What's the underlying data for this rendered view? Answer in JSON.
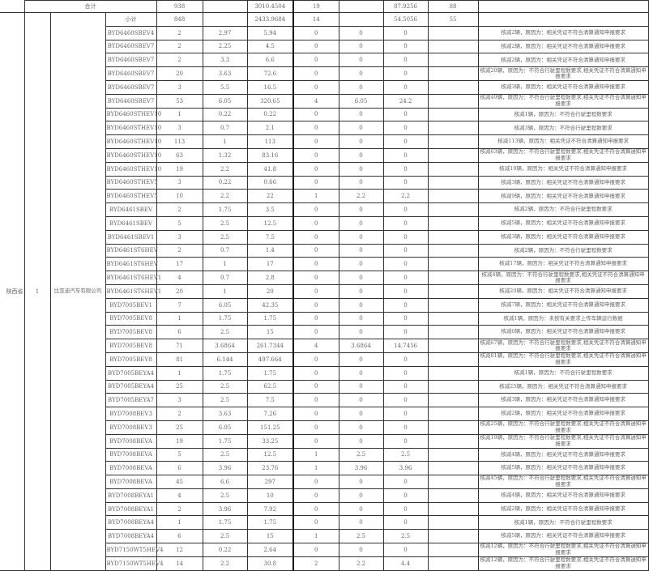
{
  "total": {
    "label": "合计",
    "count": "938",
    "price": "",
    "amount": "3010.4504",
    "cut_count": "19",
    "cut_price": "",
    "cut_amount": "87.9256",
    "extra": "88",
    "remark": ""
  },
  "province": "陕西省",
  "index": "1",
  "company": "比亚迪汽车有限公司",
  "subtotal": {
    "label": "小计",
    "count": "848",
    "price": "",
    "amount": "2433.9684",
    "cut_count": "14",
    "cut_price": "",
    "cut_amount": "54.5056",
    "extra": "55",
    "remark": ""
  },
  "rows": [
    {
      "model": "BYD6460SBEV4",
      "count": "2",
      "price": "2.97",
      "amount": "5.94",
      "cut_count": "0",
      "cut_price": "0",
      "cut_amount": "0",
      "remark": "核减2辆，原因为：相关凭证不符合清算通知申报要求"
    },
    {
      "model": "BYD6460SBEV7",
      "count": "2",
      "price": "2.25",
      "amount": "4.5",
      "cut_count": "0",
      "cut_price": "0",
      "cut_amount": "0",
      "remark": "核减2辆，原因为：相关凭证不符合清算通知申报要求"
    },
    {
      "model": "BYD6460SBEV7",
      "count": "2",
      "price": "3.3",
      "amount": "6.6",
      "cut_count": "0",
      "cut_price": "0",
      "cut_amount": "0",
      "remark": "核减2辆，原因为：相关凭证不符合清算通知申报要求"
    },
    {
      "model": "BYD6460SBEV7",
      "count": "20",
      "price": "3.63",
      "amount": "72.6",
      "cut_count": "0",
      "cut_price": "0",
      "cut_amount": "0",
      "remark": "核减20辆，原因为：不符合行驶里程数要求,相关凭证不符合清算通知申报要求"
    },
    {
      "model": "BYD6460SBEV7",
      "count": "3",
      "price": "5.5",
      "amount": "16.5",
      "cut_count": "0",
      "cut_price": "0",
      "cut_amount": "0",
      "remark": "核减3辆，原因为：相关凭证不符合清算通知申报要求"
    },
    {
      "model": "BYD6460SBEV7",
      "count": "53",
      "price": "6.05",
      "amount": "320.65",
      "cut_count": "4",
      "cut_price": "6.05",
      "cut_amount": "24.2",
      "remark": "核减49辆，原因为：不符合行驶里程数要求,相关凭证不符合清算通知申报要求"
    },
    {
      "model": "BYD6460STHEV10",
      "count": "1",
      "price": "0.22",
      "amount": "0.22",
      "cut_count": "0",
      "cut_price": "0",
      "cut_amount": "0",
      "remark": "核减1辆，原因为：不符合行驶里程数要求"
    },
    {
      "model": "BYD6460STHEV10",
      "count": "3",
      "price": "0.7",
      "amount": "2.1",
      "cut_count": "0",
      "cut_price": "0",
      "cut_amount": "0",
      "remark": "核减3辆，原因为：不符合行驶里程数要求"
    },
    {
      "model": "BYD6460STHEV10",
      "count": "113",
      "price": "1",
      "amount": "113",
      "cut_count": "0",
      "cut_price": "0",
      "cut_amount": "0",
      "remark": "核减113辆，原因为：相关凭证不符合清算通知申报要求"
    },
    {
      "model": "BYD6460STHEV10",
      "count": "63",
      "price": "1.32",
      "amount": "83.16",
      "cut_count": "0",
      "cut_price": "0",
      "cut_amount": "0",
      "remark": "核减63辆，原因为：不符合行驶里程数要求,相关凭证不符合清算通知申报要求"
    },
    {
      "model": "BYD6460STHEV10",
      "count": "19",
      "price": "2.2",
      "amount": "41.8",
      "cut_count": "0",
      "cut_price": "0",
      "cut_amount": "0",
      "remark": "核减19辆，原因为：相关凭证不符合清算通知申报要求"
    },
    {
      "model": "BYD6460STHEV5",
      "count": "3",
      "price": "0.22",
      "amount": "0.66",
      "cut_count": "0",
      "cut_price": "0",
      "cut_amount": "0",
      "remark": "核减3辆，原因为：相关凭证不符合清算通知申报要求"
    },
    {
      "model": "BYD6460STHEV5",
      "count": "10",
      "price": "2.2",
      "amount": "22",
      "cut_count": "1",
      "cut_price": "2.2",
      "cut_amount": "2.2",
      "remark": "核减9辆，原因为：相关凭证不符合清算通知申报要求"
    },
    {
      "model": "BYD6461SBEV",
      "count": "2",
      "price": "1.75",
      "amount": "3.5",
      "cut_count": "0",
      "cut_price": "0",
      "cut_amount": "0",
      "remark": "核减2辆，原因为：不符合行驶里程数要求"
    },
    {
      "model": "BYD6461SBEV",
      "count": "5",
      "price": "2.5",
      "amount": "12.5",
      "cut_count": "0",
      "cut_price": "0",
      "cut_amount": "0",
      "remark": "核减5辆，原因为：相关凭证不符合清算通知申报要求"
    },
    {
      "model": "BYD6461SBEV1",
      "count": "3",
      "price": "2.5",
      "amount": "7.5",
      "cut_count": "0",
      "cut_price": "0",
      "cut_amount": "0",
      "remark": "核减3辆，原因为：相关凭证不符合清算通知申报要求"
    },
    {
      "model": "BYD6461ST6HEV",
      "count": "2",
      "price": "0.7",
      "amount": "1.4",
      "cut_count": "0",
      "cut_price": "0",
      "cut_amount": "0",
      "remark": "核减2辆，原因为：不符合行驶里程数要求"
    },
    {
      "model": "BYD6461ST6HEV",
      "count": "17",
      "price": "1",
      "amount": "17",
      "cut_count": "0",
      "cut_price": "0",
      "cut_amount": "0",
      "remark": "核减17辆，原因为：相关凭证不符合清算通知申报要求"
    },
    {
      "model": "BYD6461ST6HEV1",
      "count": "4",
      "price": "0.7",
      "amount": "2.8",
      "cut_count": "0",
      "cut_price": "0",
      "cut_amount": "0",
      "remark": "核减4辆，原因为：不符合行驶里程数要求,相关凭证不符合清算通知申报要求"
    },
    {
      "model": "BYD6461ST6HEV1",
      "count": "20",
      "price": "1",
      "amount": "20",
      "cut_count": "0",
      "cut_price": "0",
      "cut_amount": "0",
      "remark": "核减20辆，原因为：相关凭证不符合清算通知申报要求"
    },
    {
      "model": "BYD7005BEV1",
      "count": "7",
      "price": "6.05",
      "amount": "42.35",
      "cut_count": "0",
      "cut_price": "0",
      "cut_amount": "0",
      "remark": "核减7辆，原因为：相关凭证不符合清算通知申报要求"
    },
    {
      "model": "BYD7005BEV8",
      "count": "1",
      "price": "1.75",
      "amount": "1.75",
      "cut_count": "0",
      "cut_price": "0",
      "cut_amount": "0",
      "remark": "核减1辆，原因为：未按有关要求上传车辆运行数据"
    },
    {
      "model": "BYD7005BEV8",
      "count": "6",
      "price": "2.5",
      "amount": "15",
      "cut_count": "0",
      "cut_price": "0",
      "cut_amount": "0",
      "remark": "核减6辆，原因为：相关凭证不符合清算通知申报要求"
    },
    {
      "model": "BYD7005BEV8",
      "count": "71",
      "price": "3.6864",
      "amount": "261.7344",
      "cut_count": "4",
      "cut_price": "3.6864",
      "cut_amount": "14.7456",
      "remark": "核减67辆，原因为：不符合行驶里程数要求,相关凭证不符合清算通知申报要求"
    },
    {
      "model": "BYD7005BEV8",
      "count": "81",
      "price": "6.144",
      "amount": "497.664",
      "cut_count": "0",
      "cut_price": "0",
      "cut_amount": "0",
      "remark": "核减81辆，原因为：不符合行驶里程数要求,相关凭证不符合清算通知申报要求"
    },
    {
      "model": "BYD7005BEYA4",
      "count": "1",
      "price": "1.75",
      "amount": "1.75",
      "cut_count": "0",
      "cut_price": "0",
      "cut_amount": "0",
      "remark": "核减1辆，原因为：不符合行驶里程数要求"
    },
    {
      "model": "BYD7005BEYA4",
      "count": "25",
      "price": "2.5",
      "amount": "62.5",
      "cut_count": "0",
      "cut_price": "0",
      "cut_amount": "0",
      "remark": "核减25辆，原因为：相关凭证不符合清算通知申报要求"
    },
    {
      "model": "BYD7005BEYA7",
      "count": "3",
      "price": "2.5",
      "amount": "7.5",
      "cut_count": "0",
      "cut_price": "0",
      "cut_amount": "0",
      "remark": "核减3辆，原因为：相关凭证不符合清算通知申报要求"
    },
    {
      "model": "BYD7008BEV3",
      "count": "2",
      "price": "3.63",
      "amount": "7.26",
      "cut_count": "0",
      "cut_price": "0",
      "cut_amount": "0",
      "remark": "核减2辆，原因为：相关凭证不符合清算通知申报要求"
    },
    {
      "model": "BYD7008BEV3",
      "count": "25",
      "price": "6.05",
      "amount": "151.25",
      "cut_count": "0",
      "cut_price": "0",
      "cut_amount": "0",
      "remark": "核减25辆，原因为：不符合行驶里程数要求,相关凭证不符合清算通知申报要求"
    },
    {
      "model": "BYD7008BEVA",
      "count": "19",
      "price": "1.75",
      "amount": "33.25",
      "cut_count": "0",
      "cut_price": "0",
      "cut_amount": "0",
      "remark": "核减19辆，原因为：不符合行驶里程数要求,相关凭证不符合清算通知申报要求"
    },
    {
      "model": "BYD7008BEVA",
      "count": "5",
      "price": "2.5",
      "amount": "12.5",
      "cut_count": "1",
      "cut_price": "2.5",
      "cut_amount": "2.5",
      "remark": "核减4辆，原因为：相关凭证不符合清算通知申报要求"
    },
    {
      "model": "BYD7008BEVA",
      "count": "6",
      "price": "3.96",
      "amount": "23.76",
      "cut_count": "1",
      "cut_price": "3.96",
      "cut_amount": "3.96",
      "remark": "核减5辆，原因为：相关凭证不符合清算通知申报要求"
    },
    {
      "model": "BYD7008BEVA",
      "count": "45",
      "price": "6.6",
      "amount": "297",
      "cut_count": "0",
      "cut_price": "0",
      "cut_amount": "0",
      "remark": "核减45辆，原因为：不符合行驶里程数要求,相关凭证不符合清算通知申报要求"
    },
    {
      "model": "BYD7008BEYA1",
      "count": "4",
      "price": "2.5",
      "amount": "10",
      "cut_count": "0",
      "cut_price": "0",
      "cut_amount": "0",
      "remark": "核减4辆，原因为：相关凭证不符合清算通知申报要求"
    },
    {
      "model": "BYD7008BEYA1",
      "count": "2",
      "price": "3.96",
      "amount": "7.92",
      "cut_count": "0",
      "cut_price": "0",
      "cut_amount": "0",
      "remark": "核减2辆，原因为：相关凭证不符合清算通知申报要求"
    },
    {
      "model": "BYD7008BEYA4",
      "count": "1",
      "price": "1.75",
      "amount": "1.75",
      "cut_count": "0",
      "cut_price": "0",
      "cut_amount": "0",
      "remark": "核减1辆，原因为：不符合行驶里程数要求"
    },
    {
      "model": "BYD7008BEYA4",
      "count": "6",
      "price": "2.5",
      "amount": "15",
      "cut_count": "1",
      "cut_price": "2.5",
      "cut_amount": "2.5",
      "remark": "核减5辆，原因为：相关凭证不符合清算通知申报要求"
    },
    {
      "model": "BYD7150WT5HEV4",
      "count": "12",
      "price": "0.22",
      "amount": "2.64",
      "cut_count": "0",
      "cut_price": "0",
      "cut_amount": "0",
      "remark": "核减12辆，原因为：不符合行驶里程数要求,相关凭证不符合清算通知申报要求"
    },
    {
      "model": "BYD7150WT5HEV4",
      "count": "14",
      "price": "2.2",
      "amount": "30.8",
      "cut_count": "2",
      "cut_price": "2.2",
      "cut_amount": "4.4",
      "remark": "核减12辆，原因为：不符合行驶里程数要求,相关凭证不符合清算通知申报要求"
    }
  ]
}
